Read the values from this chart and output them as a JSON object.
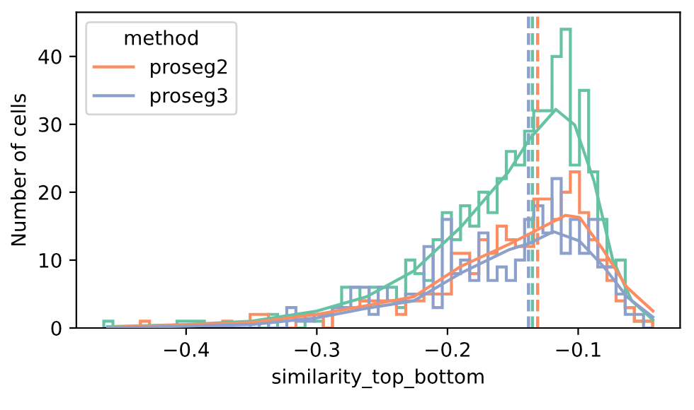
{
  "chart_data": {
    "type": "histogram",
    "xlabel": "similarity_top_bottom",
    "ylabel": "Number of cells",
    "legend_title": "method",
    "legend": "top left",
    "grid": false,
    "bins": [
      -0.463,
      -0.456,
      -0.449,
      -0.442,
      -0.435,
      -0.428,
      -0.421,
      -0.414,
      -0.407,
      -0.4,
      -0.393,
      -0.386,
      -0.379,
      -0.372,
      -0.365,
      -0.358,
      -0.351,
      -0.344,
      -0.337,
      -0.33,
      -0.323,
      -0.316,
      -0.309,
      -0.302,
      -0.295,
      -0.288,
      -0.281,
      -0.274,
      -0.267,
      -0.26,
      -0.253,
      -0.246,
      -0.239,
      -0.232,
      -0.225,
      -0.218,
      -0.211,
      -0.204,
      -0.197,
      -0.19,
      -0.183,
      -0.176,
      -0.169,
      -0.162,
      -0.155,
      -0.148,
      -0.141,
      -0.134,
      -0.127,
      -0.12,
      -0.113,
      -0.106,
      -0.099,
      -0.092,
      -0.085,
      -0.078,
      -0.071,
      -0.064,
      -0.057,
      -0.05,
      -0.043
    ],
    "series": [
      {
        "color": "#66c2a5",
        "values": [
          1,
          0,
          0,
          0,
          0,
          0,
          0,
          0,
          1,
          1,
          1,
          0,
          0,
          0,
          0,
          0,
          0,
          0,
          2,
          0,
          0,
          0,
          2,
          1,
          0,
          3,
          6,
          6,
          4,
          6,
          6,
          6,
          3,
          10,
          8,
          7,
          13,
          17,
          13,
          18,
          15,
          20,
          17,
          22,
          26,
          24,
          29,
          32,
          32,
          40,
          44,
          24,
          35,
          23,
          16,
          9,
          10,
          3,
          1,
          1
        ]
      },
      {
        "color": "#fc8d62",
        "values": [
          0,
          0,
          0,
          0,
          1,
          0,
          0,
          0,
          0,
          0,
          0,
          0,
          0,
          1,
          0,
          0,
          2,
          2,
          0,
          0,
          0,
          2,
          2,
          2,
          0,
          3,
          3,
          3,
          4,
          4,
          4,
          4,
          2,
          4,
          4,
          5,
          5,
          5,
          11,
          11,
          8,
          13,
          11,
          15,
          13,
          12,
          12,
          19,
          19,
          16,
          20,
          23,
          17,
          13,
          10,
          7,
          4,
          3,
          1,
          1
        ]
      },
      {
        "color": "#8da0cb",
        "values": [
          0,
          0,
          0,
          0,
          0,
          0,
          0,
          0,
          0,
          0,
          0,
          0,
          0,
          0,
          0,
          0,
          0,
          1,
          0,
          0,
          3,
          1,
          1,
          2,
          2,
          3,
          3,
          6,
          6,
          2,
          6,
          4,
          4,
          5,
          5,
          12,
          3,
          16,
          8,
          10,
          7,
          14,
          7,
          9,
          7,
          10,
          16,
          18,
          14,
          22,
          11,
          16,
          11,
          16,
          9,
          9,
          5,
          2,
          2,
          0
        ]
      },
      {
        "type": "line",
        "color": "#66c2a4",
        "x": [
          -0.46,
          -0.4,
          -0.35,
          -0.3,
          -0.262,
          -0.2258,
          -0.1896,
          -0.1533,
          -0.137,
          -0.1171,
          -0.1026,
          -0.088,
          -0.0736,
          -0.059,
          -0.0428
        ],
        "values": [
          0.2,
          0.5,
          1,
          2.5,
          4.6,
          8.4,
          14.9,
          23,
          27.9,
          32.2,
          29.9,
          21.7,
          10.1,
          4,
          1.2
        ]
      },
      {
        "type": "line",
        "name": "proseg2",
        "color": "#fc8d62",
        "x": [
          -0.46,
          -0.35,
          -0.3,
          -0.262,
          -0.2258,
          -0.1896,
          -0.1533,
          -0.137,
          -0.1098,
          -0.0989,
          -0.0808,
          -0.0627,
          -0.0428
        ],
        "values": [
          0.1,
          0.8,
          2,
          3.3,
          4.6,
          9.1,
          12.3,
          13.9,
          16.6,
          16.3,
          11.5,
          6,
          2.5
        ]
      },
      {
        "type": "line",
        "name": "proseg3",
        "color": "#8da0ca",
        "x": [
          -0.46,
          -0.35,
          -0.3,
          -0.262,
          -0.2258,
          -0.1896,
          -0.1533,
          -0.137,
          -0.1189,
          -0.0989,
          -0.0808,
          -0.0627,
          -0.0428
        ],
        "values": [
          0,
          0.5,
          1.5,
          2.9,
          4,
          8.1,
          11.5,
          12.5,
          14.2,
          12.8,
          9.1,
          4.6,
          1.6
        ]
      }
    ],
    "ref_lines": [
      {
        "axis": "x",
        "value": -0.135,
        "color": "#66c2a5",
        "line_style": "dashed"
      },
      {
        "axis": "x",
        "value": -0.131,
        "color": "#fc8d62",
        "line_style": "dashed"
      },
      {
        "axis": "x",
        "value": -0.138,
        "color": "#8da0cb",
        "line_style": "dashed"
      }
    ],
    "xlim": [
      -0.484,
      -0.022
    ],
    "ylim": [
      0,
      46.5
    ],
    "xticks": [
      {
        "value": -0.4,
        "label": "−0.4"
      },
      {
        "value": -0.3,
        "label": "−0.3"
      },
      {
        "value": -0.2,
        "label": "−0.2"
      },
      {
        "value": -0.1,
        "label": "−0.1"
      }
    ],
    "yticks": [
      0,
      10,
      20,
      30,
      40
    ]
  }
}
